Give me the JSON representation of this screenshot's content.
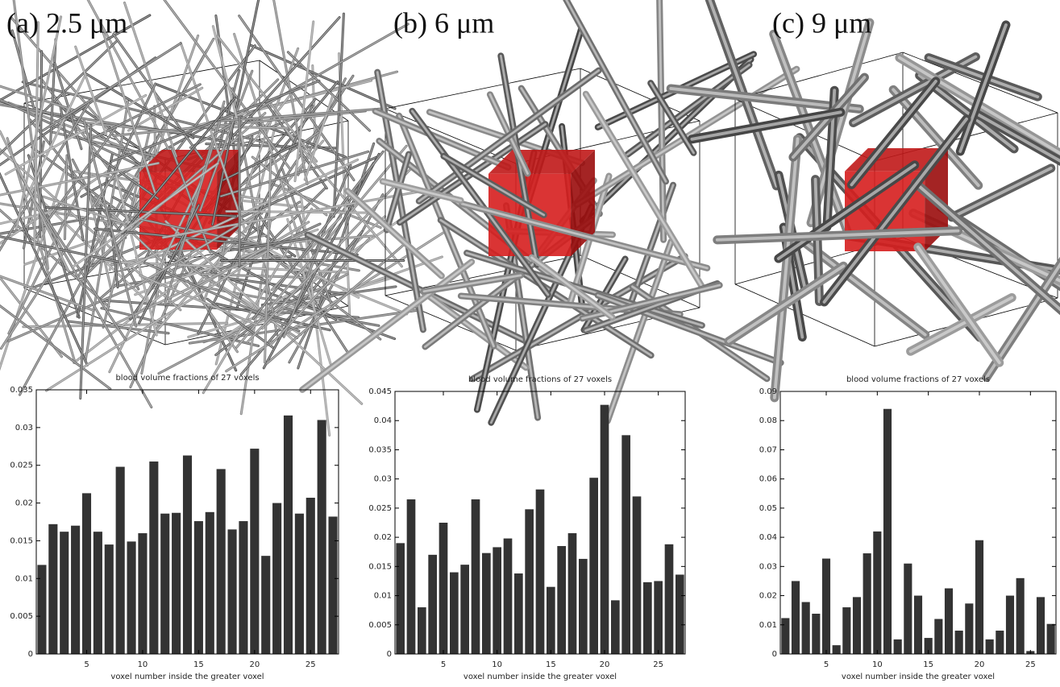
{
  "chart_data": [
    {
      "type": "bar",
      "panel_label": "(a) 2.5 μm",
      "title": "blood volume fractions of 27 voxels",
      "xlabel": "voxel number inside the greater voxel",
      "x": [
        1,
        2,
        3,
        4,
        5,
        6,
        7,
        8,
        9,
        10,
        11,
        12,
        13,
        14,
        15,
        16,
        17,
        18,
        19,
        20,
        21,
        22,
        23,
        24,
        25,
        26,
        27
      ],
      "values": [
        0.0118,
        0.0172,
        0.0162,
        0.017,
        0.0213,
        0.0162,
        0.0145,
        0.0248,
        0.0149,
        0.016,
        0.0255,
        0.0186,
        0.0187,
        0.0263,
        0.0176,
        0.0188,
        0.0245,
        0.0165,
        0.0176,
        0.0272,
        0.013,
        0.02,
        0.0316,
        0.0186,
        0.0207,
        0.031,
        0.0182
      ],
      "color": "#333333",
      "xlim": [
        0.5,
        27.5
      ],
      "xticks": [
        5,
        10,
        15,
        20,
        25
      ],
      "ylim": [
        0,
        0.035
      ],
      "yticks": [
        0,
        0.005,
        0.01,
        0.015,
        0.02,
        0.025,
        0.03,
        0.035
      ]
    },
    {
      "type": "bar",
      "panel_label": "(b) 6 μm",
      "title": "blood volume fractions of 27 voxels",
      "xlabel": "voxel number inside the greater voxel",
      "x": [
        1,
        2,
        3,
        4,
        5,
        6,
        7,
        8,
        9,
        10,
        11,
        12,
        13,
        14,
        15,
        16,
        17,
        18,
        19,
        20,
        21,
        22,
        23,
        24,
        25,
        26,
        27
      ],
      "values": [
        0.019,
        0.0265,
        0.008,
        0.017,
        0.0225,
        0.014,
        0.0153,
        0.0265,
        0.0173,
        0.0183,
        0.0198,
        0.0138,
        0.0248,
        0.0282,
        0.0115,
        0.0185,
        0.0207,
        0.0163,
        0.0302,
        0.0427,
        0.0092,
        0.0375,
        0.027,
        0.0123,
        0.0125,
        0.0188,
        0.0136
      ],
      "color": "#333333",
      "xlim": [
        0.5,
        27.5
      ],
      "xticks": [
        5,
        10,
        15,
        20,
        25
      ],
      "ylim": [
        0,
        0.045
      ],
      "yticks": [
        0,
        0.005,
        0.01,
        0.015,
        0.02,
        0.025,
        0.03,
        0.035,
        0.04,
        0.045
      ]
    },
    {
      "type": "bar",
      "panel_label": "(c) 9 μm",
      "title": "blood volume fractions of 27 voxels",
      "xlabel": "voxel number inside the greater voxel",
      "x": [
        1,
        2,
        3,
        4,
        5,
        6,
        7,
        8,
        9,
        10,
        11,
        12,
        13,
        14,
        15,
        16,
        17,
        18,
        19,
        20,
        21,
        22,
        23,
        24,
        25,
        26,
        27
      ],
      "values": [
        0.0123,
        0.025,
        0.0178,
        0.0138,
        0.0327,
        0.003,
        0.016,
        0.0195,
        0.0345,
        0.042,
        0.084,
        0.005,
        0.031,
        0.02,
        0.0055,
        0.012,
        0.0225,
        0.008,
        0.0173,
        0.039,
        0.005,
        0.008,
        0.02,
        0.026,
        0.001,
        0.0195,
        0.0103
      ],
      "color": "#333333",
      "xlim": [
        0.5,
        27.5
      ],
      "xticks": [
        5,
        10,
        15,
        20,
        25
      ],
      "ylim": [
        0,
        0.09
      ],
      "yticks": [
        0,
        0.01,
        0.02,
        0.03,
        0.04,
        0.05,
        0.06,
        0.07,
        0.08,
        0.09
      ]
    }
  ]
}
